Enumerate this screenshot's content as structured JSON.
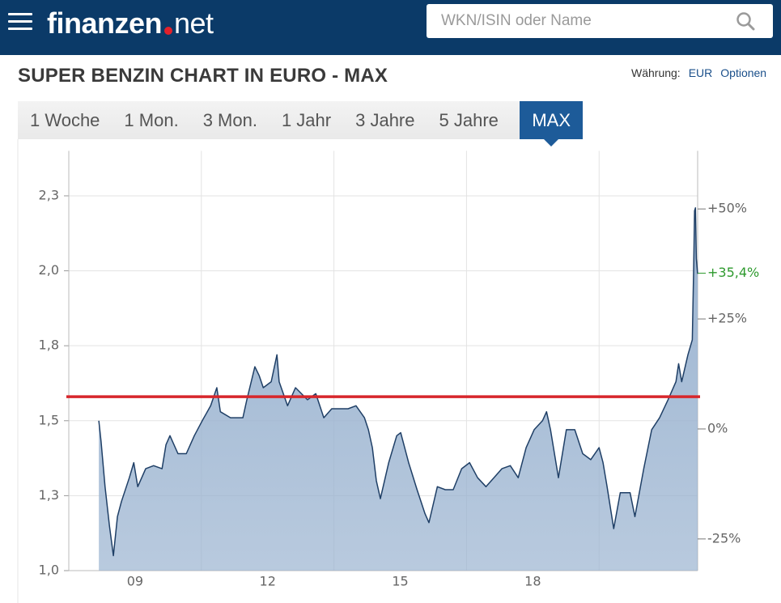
{
  "header": {
    "logo": "finanzen",
    "logo_suffix": "net",
    "search_placeholder": "WKN/ISIN oder Name"
  },
  "page": {
    "title": "SUPER BENZIN CHART IN EURO - MAX",
    "currency_label": "Währung:",
    "currency": "EUR",
    "options": "Optionen"
  },
  "tabs": {
    "items": [
      "1 Woche",
      "1 Mon.",
      "3 Mon.",
      "1 Jahr",
      "3 Jahre",
      "5 Jahre",
      "MAX"
    ],
    "active": 6
  },
  "chart_data": {
    "type": "area",
    "line_color": "#1f3f66",
    "fill_color": "#9ab3d0",
    "x": [
      2008.68,
      2008.73,
      2008.82,
      2008.92,
      2009.01,
      2009.1,
      2009.19,
      2009.37,
      2009.47,
      2009.56,
      2009.74,
      2009.92,
      2010.11,
      2010.2,
      2010.29,
      2010.47,
      2010.66,
      2010.84,
      2011.02,
      2011.21,
      2011.35,
      2011.43,
      2011.66,
      2011.94,
      2012.03,
      2012.21,
      2012.31,
      2012.4,
      2012.58,
      2012.71,
      2012.76,
      2012.95,
      2013.13,
      2013.4,
      2013.59,
      2013.77,
      2013.95,
      2014.14,
      2014.32,
      2014.5,
      2014.69,
      2014.78,
      2014.87,
      2014.96,
      2015.05,
      2015.24,
      2015.42,
      2015.51,
      2015.69,
      2015.88,
      2016.06,
      2016.15,
      2016.34,
      2016.52,
      2016.7,
      2016.89,
      2017.07,
      2017.25,
      2017.44,
      2017.62,
      2017.8,
      2017.99,
      2018.17,
      2018.35,
      2018.53,
      2018.72,
      2018.81,
      2018.9,
      2019.08,
      2019.26,
      2019.45,
      2019.63,
      2019.81,
      2020.0,
      2020.09,
      2020.18,
      2020.33,
      2020.48,
      2020.7,
      2020.81,
      2021.01,
      2021.19,
      2021.37,
      2021.56,
      2021.74,
      2021.8,
      2021.87,
      2022.01,
      2022.11,
      2022.14,
      2022.16,
      2022.18,
      2022.2,
      2022.23
    ],
    "values": [
      1.5,
      1.43,
      1.28,
      1.15,
      1.05,
      1.18,
      1.23,
      1.31,
      1.36,
      1.28,
      1.34,
      1.35,
      1.34,
      1.42,
      1.45,
      1.39,
      1.39,
      1.45,
      1.5,
      1.55,
      1.61,
      1.53,
      1.51,
      1.51,
      1.57,
      1.68,
      1.65,
      1.61,
      1.63,
      1.72,
      1.63,
      1.55,
      1.61,
      1.57,
      1.59,
      1.51,
      1.54,
      1.54,
      1.54,
      1.55,
      1.51,
      1.47,
      1.41,
      1.3,
      1.24,
      1.36,
      1.45,
      1.46,
      1.36,
      1.27,
      1.19,
      1.16,
      1.28,
      1.27,
      1.27,
      1.34,
      1.36,
      1.31,
      1.28,
      1.31,
      1.34,
      1.35,
      1.31,
      1.41,
      1.47,
      1.5,
      1.53,
      1.47,
      1.31,
      1.47,
      1.47,
      1.39,
      1.37,
      1.41,
      1.36,
      1.28,
      1.14,
      1.26,
      1.26,
      1.18,
      1.34,
      1.47,
      1.51,
      1.57,
      1.63,
      1.69,
      1.63,
      1.72,
      1.77,
      2.01,
      2.2,
      2.21,
      2.04,
      1.99
    ],
    "xlim": [
      2008.0,
      2022.23
    ],
    "xticks": [
      {
        "value": 2009.5,
        "label": "09"
      },
      {
        "value": 2012.5,
        "label": "12"
      },
      {
        "value": 2015.5,
        "label": "15"
      },
      {
        "value": 2018.5,
        "label": "18"
      }
    ],
    "xgrid": [
      2011,
      2014,
      2017,
      2020
    ],
    "ylim": [
      1.0,
      2.4
    ],
    "yticks": [
      {
        "value": 1.0,
        "label": "1,0"
      },
      {
        "value": 1.25,
        "label": "1,3"
      },
      {
        "value": 1.5,
        "label": "1,5"
      },
      {
        "value": 1.75,
        "label": "1,8"
      },
      {
        "value": 2.0,
        "label": "2,0"
      },
      {
        "value": 2.25,
        "label": "2,3"
      }
    ],
    "y2lim": [
      -32.2,
      63.2
    ],
    "y2ticks": [
      {
        "value": -25,
        "label": "-25%"
      },
      {
        "value": 0,
        "label": "0%"
      },
      {
        "value": 25,
        "label": "+25%"
      },
      {
        "value": 50,
        "label": "+50%"
      }
    ],
    "current_change": {
      "value": 35.4,
      "label": "+35,4%",
      "color": "#2e9a2e"
    },
    "reference_line": {
      "value": 1.58,
      "color": "#d7262b"
    },
    "grid": true
  }
}
